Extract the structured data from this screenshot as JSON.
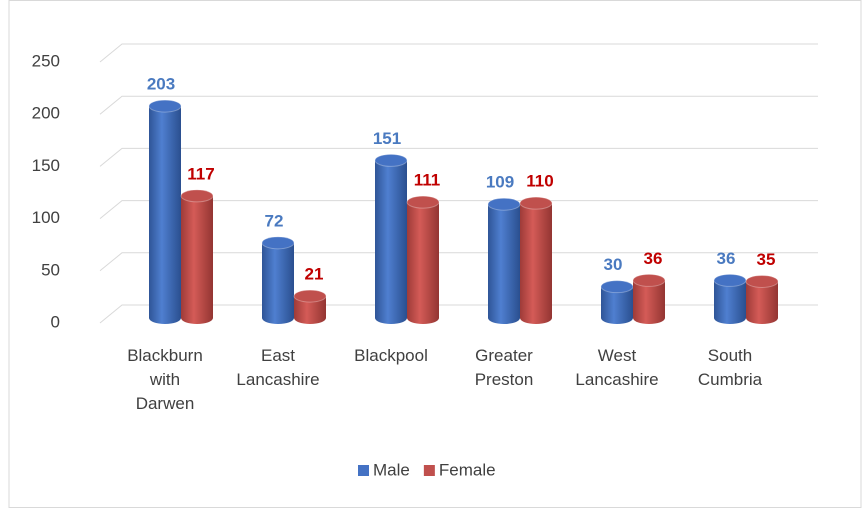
{
  "chart_data": {
    "type": "bar3d",
    "categories": [
      "Blackburn with Darwen",
      "East Lancashire",
      "Blackpool",
      "Greater Preston",
      "West Lancashire",
      "South Cumbria"
    ],
    "series": [
      {
        "name": "Male",
        "color": "#4472c4",
        "label_color": "#4a7ac0",
        "values": [
          203,
          72,
          151,
          109,
          30,
          36
        ]
      },
      {
        "name": "Female",
        "color": "#c0504d",
        "label_color": "#c00000",
        "values": [
          117,
          21,
          111,
          110,
          36,
          35
        ]
      }
    ],
    "ylim": [
      0,
      250
    ],
    "yticks": [
      0,
      50,
      100,
      150,
      200,
      250
    ],
    "grid": true,
    "legend": "bottom"
  }
}
